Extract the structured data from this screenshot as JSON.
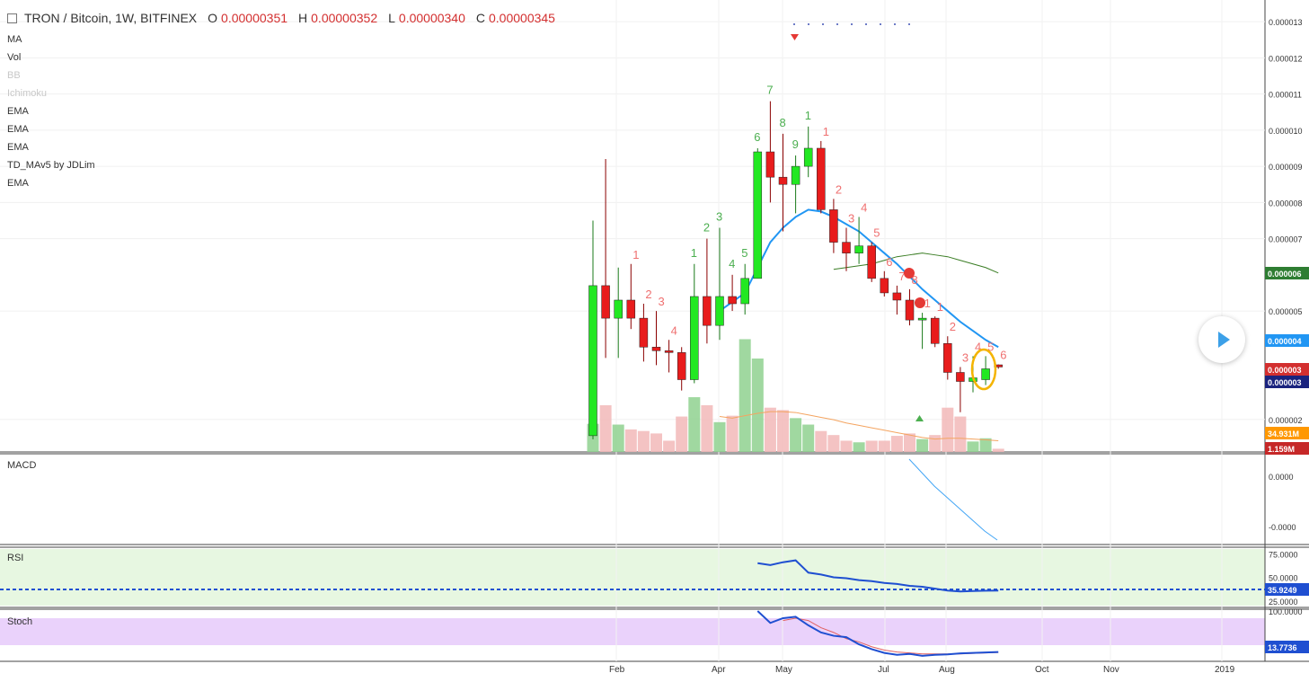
{
  "header": {
    "symbol": "TRON / Bitcoin, 1W, BITFINEX",
    "o_key": "O",
    "o_val": "0.00000351",
    "h_key": "H",
    "h_val": "0.00000352",
    "l_key": "L",
    "l_val": "0.00000340",
    "c_key": "C",
    "c_val": "0.00000345"
  },
  "indicators": [
    "MA",
    "Vol",
    "BB",
    "Ichimoku",
    "EMA",
    "EMA",
    "EMA",
    "TD_MAv5 by JDLim",
    "EMA"
  ],
  "indicators_dimmed": [
    false,
    false,
    true,
    true,
    false,
    false,
    false,
    false,
    false
  ],
  "panes": {
    "macd": "MACD",
    "rsi": "RSI",
    "stoch": "Stoch"
  },
  "colors": {
    "up": "#22e822",
    "down": "#e81c1c",
    "ema_fast": "#2196f3",
    "ema_slow": "#3a7d24",
    "vol_ma": "#f4a460",
    "rsi": "#1f4fd1",
    "stoch_k": "#1f4fd1",
    "stoch_d": "#e06060",
    "macd": "#42a5f5",
    "rsi_bg": "#e7f7e1",
    "stoch_bg": "#ead2fb",
    "highlight": "#f4b400"
  },
  "chart_data": [
    {
      "type": "candlestick",
      "title": "TRON / Bitcoin, 1W, BITFINEX",
      "x_ticks": [
        "Feb",
        "Apr",
        "May",
        "Jul",
        "Aug",
        "Oct",
        "Nov",
        "2019"
      ],
      "y_ticks": [
        "0.000013",
        "0.000012",
        "0.000011",
        "0.000010",
        "0.000009",
        "0.000008",
        "0.000007",
        "0.000005",
        "0.000002"
      ],
      "ylim": [
        1.1e-06,
        1.36e-05
      ],
      "candles": [
        {
          "o": 1.55e-06,
          "h": 7.5e-06,
          "l": 1.45e-06,
          "c": 5.7e-06
        },
        {
          "o": 5.7e-06,
          "h": 9.2e-06,
          "l": 3.7e-06,
          "c": 4.8e-06
        },
        {
          "o": 4.8e-06,
          "h": 6.2e-06,
          "l": 3.7e-06,
          "c": 5.3e-06
        },
        {
          "o": 5.3e-06,
          "h": 6.3e-06,
          "l": 4.5e-06,
          "c": 4.8e-06
        },
        {
          "o": 4.8e-06,
          "h": 5.2e-06,
          "l": 3.6e-06,
          "c": 4e-06
        },
        {
          "o": 4e-06,
          "h": 5e-06,
          "l": 3.5e-06,
          "c": 3.9e-06
        },
        {
          "o": 3.9e-06,
          "h": 4.2e-06,
          "l": 3.3e-06,
          "c": 3.85e-06
        },
        {
          "o": 3.85e-06,
          "h": 4e-06,
          "l": 2.8e-06,
          "c": 3.1e-06
        },
        {
          "o": 3.1e-06,
          "h": 6.3e-06,
          "l": 3e-06,
          "c": 5.4e-06
        },
        {
          "o": 5.4e-06,
          "h": 7e-06,
          "l": 4.1e-06,
          "c": 4.6e-06
        },
        {
          "o": 4.6e-06,
          "h": 7.3e-06,
          "l": 4.2e-06,
          "c": 5.4e-06
        },
        {
          "o": 5.4e-06,
          "h": 6e-06,
          "l": 5e-06,
          "c": 5.2e-06
        },
        {
          "o": 5.2e-06,
          "h": 6.3e-06,
          "l": 4.9e-06,
          "c": 5.9e-06
        },
        {
          "o": 5.9e-06,
          "h": 9.5e-06,
          "l": 5.9e-06,
          "c": 9.4e-06
        },
        {
          "o": 9.4e-06,
          "h": 1.08e-05,
          "l": 8e-06,
          "c": 8.7e-06
        },
        {
          "o": 8.7e-06,
          "h": 9.9e-06,
          "l": 7.2e-06,
          "c": 8.5e-06
        },
        {
          "o": 8.5e-06,
          "h": 9.3e-06,
          "l": 7.7e-06,
          "c": 9e-06
        },
        {
          "o": 9e-06,
          "h": 1.01e-05,
          "l": 8.7e-06,
          "c": 9.5e-06
        },
        {
          "o": 9.5e-06,
          "h": 9.7e-06,
          "l": 7.7e-06,
          "c": 7.8e-06
        },
        {
          "o": 7.8e-06,
          "h": 8.1e-06,
          "l": 6.6e-06,
          "c": 6.9e-06
        },
        {
          "o": 6.9e-06,
          "h": 7.3e-06,
          "l": 6.1e-06,
          "c": 6.6e-06
        },
        {
          "o": 6.6e-06,
          "h": 7.6e-06,
          "l": 6.3e-06,
          "c": 6.8e-06
        },
        {
          "o": 6.8e-06,
          "h": 6.9e-06,
          "l": 5.8e-06,
          "c": 5.9e-06
        },
        {
          "o": 5.9e-06,
          "h": 6.1e-06,
          "l": 5.4e-06,
          "c": 5.5e-06
        },
        {
          "o": 5.5e-06,
          "h": 5.7e-06,
          "l": 4.9e-06,
          "c": 5.3e-06
        },
        {
          "o": 5.3e-06,
          "h": 5.6e-06,
          "l": 4.6e-06,
          "c": 4.75e-06
        },
        {
          "o": 4.75e-06,
          "h": 4.95e-06,
          "l": 3.95e-06,
          "c": 4.8e-06
        },
        {
          "o": 4.8e-06,
          "h": 4.85e-06,
          "l": 4e-06,
          "c": 4.1e-06
        },
        {
          "o": 4.1e-06,
          "h": 4.3e-06,
          "l": 3.1e-06,
          "c": 3.3e-06
        },
        {
          "o": 3.3e-06,
          "h": 3.45e-06,
          "l": 2.2e-06,
          "c": 3.05e-06
        },
        {
          "o": 3.05e-06,
          "h": 3.75e-06,
          "l": 2.75e-06,
          "c": 3.15e-06
        },
        {
          "o": 3.1e-06,
          "h": 3.75e-06,
          "l": 2.95e-06,
          "c": 3.4e-06
        },
        {
          "o": 3.51e-06,
          "h": 3.52e-06,
          "l": 3.4e-06,
          "c": 3.45e-06
        }
      ],
      "volume": [
        0.35,
        0.58,
        0.34,
        0.28,
        0.26,
        0.23,
        0.14,
        0.44,
        0.68,
        0.58,
        0.37,
        0.45,
        1.4,
        1.16,
        0.55,
        0.52,
        0.42,
        0.34,
        0.26,
        0.21,
        0.14,
        0.12,
        0.14,
        0.14,
        0.2,
        0.23,
        0.16,
        0.21,
        0.55,
        0.44,
        0.13,
        0.17,
        0.04
      ],
      "ema_fast": [
        null,
        null,
        null,
        null,
        null,
        null,
        null,
        null,
        null,
        null,
        5e-06,
        5.25e-06,
        5.5e-06,
        6.2e-06,
        6.9e-06,
        7.3e-06,
        7.6e-06,
        7.8e-06,
        7.75e-06,
        7.6e-06,
        7.4e-06,
        7.2e-06,
        6.9e-06,
        6.6e-06,
        6.3e-06,
        5.95e-06,
        5.6e-06,
        5.3e-06,
        5e-06,
        4.7e-06,
        4.45e-06,
        4.2e-06,
        4e-06
      ],
      "ema_slow": [
        null,
        null,
        null,
        null,
        null,
        null,
        null,
        null,
        null,
        null,
        null,
        null,
        null,
        null,
        null,
        null,
        null,
        null,
        null,
        6.15e-06,
        6.2e-06,
        6.25e-06,
        6.3e-06,
        6.4e-06,
        6.5e-06,
        6.55e-06,
        6.6e-06,
        6.55e-06,
        6.5e-06,
        6.4e-06,
        6.3e-06,
        6.2e-06,
        6.05e-06
      ],
      "td_counts_green": [
        "",
        "",
        "",
        "",
        "",
        "",
        "",
        "",
        "1",
        "2",
        "3",
        "4",
        "5",
        "6",
        "7",
        "8",
        "9",
        "1",
        "",
        "",
        "",
        "",
        "",
        "",
        "",
        "",
        "",
        "",
        "",
        "",
        "",
        "",
        ""
      ],
      "td_counts_red": [
        "",
        "",
        "",
        "1",
        "2",
        "3",
        "4",
        "",
        "",
        "",
        "",
        "",
        "",
        "",
        "",
        "",
        "",
        "",
        "1",
        "2",
        "3",
        "4",
        "5",
        "6",
        "7",
        "8",
        "1",
        "1",
        "2",
        "3",
        "4",
        "5",
        "6"
      ],
      "price_tags": [
        "0.000006",
        "0.000004",
        "0.000003",
        "0.000003",
        "34.931M",
        "1.159M"
      ]
    },
    {
      "type": "line",
      "title": "MACD",
      "y_ticks": [
        "0.0000",
        "-0.0000"
      ],
      "series": [
        {
          "values": [
            0.9,
            0.6,
            0.3,
            0.05,
            -0.2,
            -0.45,
            -0.7,
            -0.9
          ]
        }
      ]
    },
    {
      "type": "line",
      "title": "RSI",
      "y_ticks": [
        "75.0000",
        "50.0000",
        "25.0000"
      ],
      "current": "35.9249",
      "series": [
        {
          "values": [
            null,
            null,
            null,
            null,
            null,
            null,
            null,
            null,
            null,
            null,
            null,
            null,
            null,
            65,
            63,
            66,
            68,
            55,
            53,
            50,
            49,
            47,
            46,
            44,
            43,
            41,
            40,
            38,
            36,
            35,
            35.5,
            35.8,
            35.9
          ]
        }
      ]
    },
    {
      "type": "line",
      "title": "Stoch",
      "y_ticks": [
        "100.0000"
      ],
      "current": "13.7736",
      "series": [
        {
          "values": [
            null,
            null,
            null,
            null,
            null,
            null,
            null,
            null,
            null,
            null,
            null,
            null,
            null,
            100,
            75,
            85,
            88,
            70,
            55,
            48,
            45,
            30,
            20,
            12,
            8,
            10,
            6,
            8,
            9,
            11,
            12,
            13,
            13.8
          ]
        },
        {
          "values": [
            null,
            null,
            null,
            null,
            null,
            null,
            null,
            null,
            null,
            null,
            null,
            null,
            null,
            null,
            null,
            80,
            85,
            80,
            65,
            55,
            42,
            35,
            25,
            18,
            14,
            12,
            10,
            10,
            10,
            10,
            11,
            12,
            13
          ]
        }
      ]
    }
  ]
}
